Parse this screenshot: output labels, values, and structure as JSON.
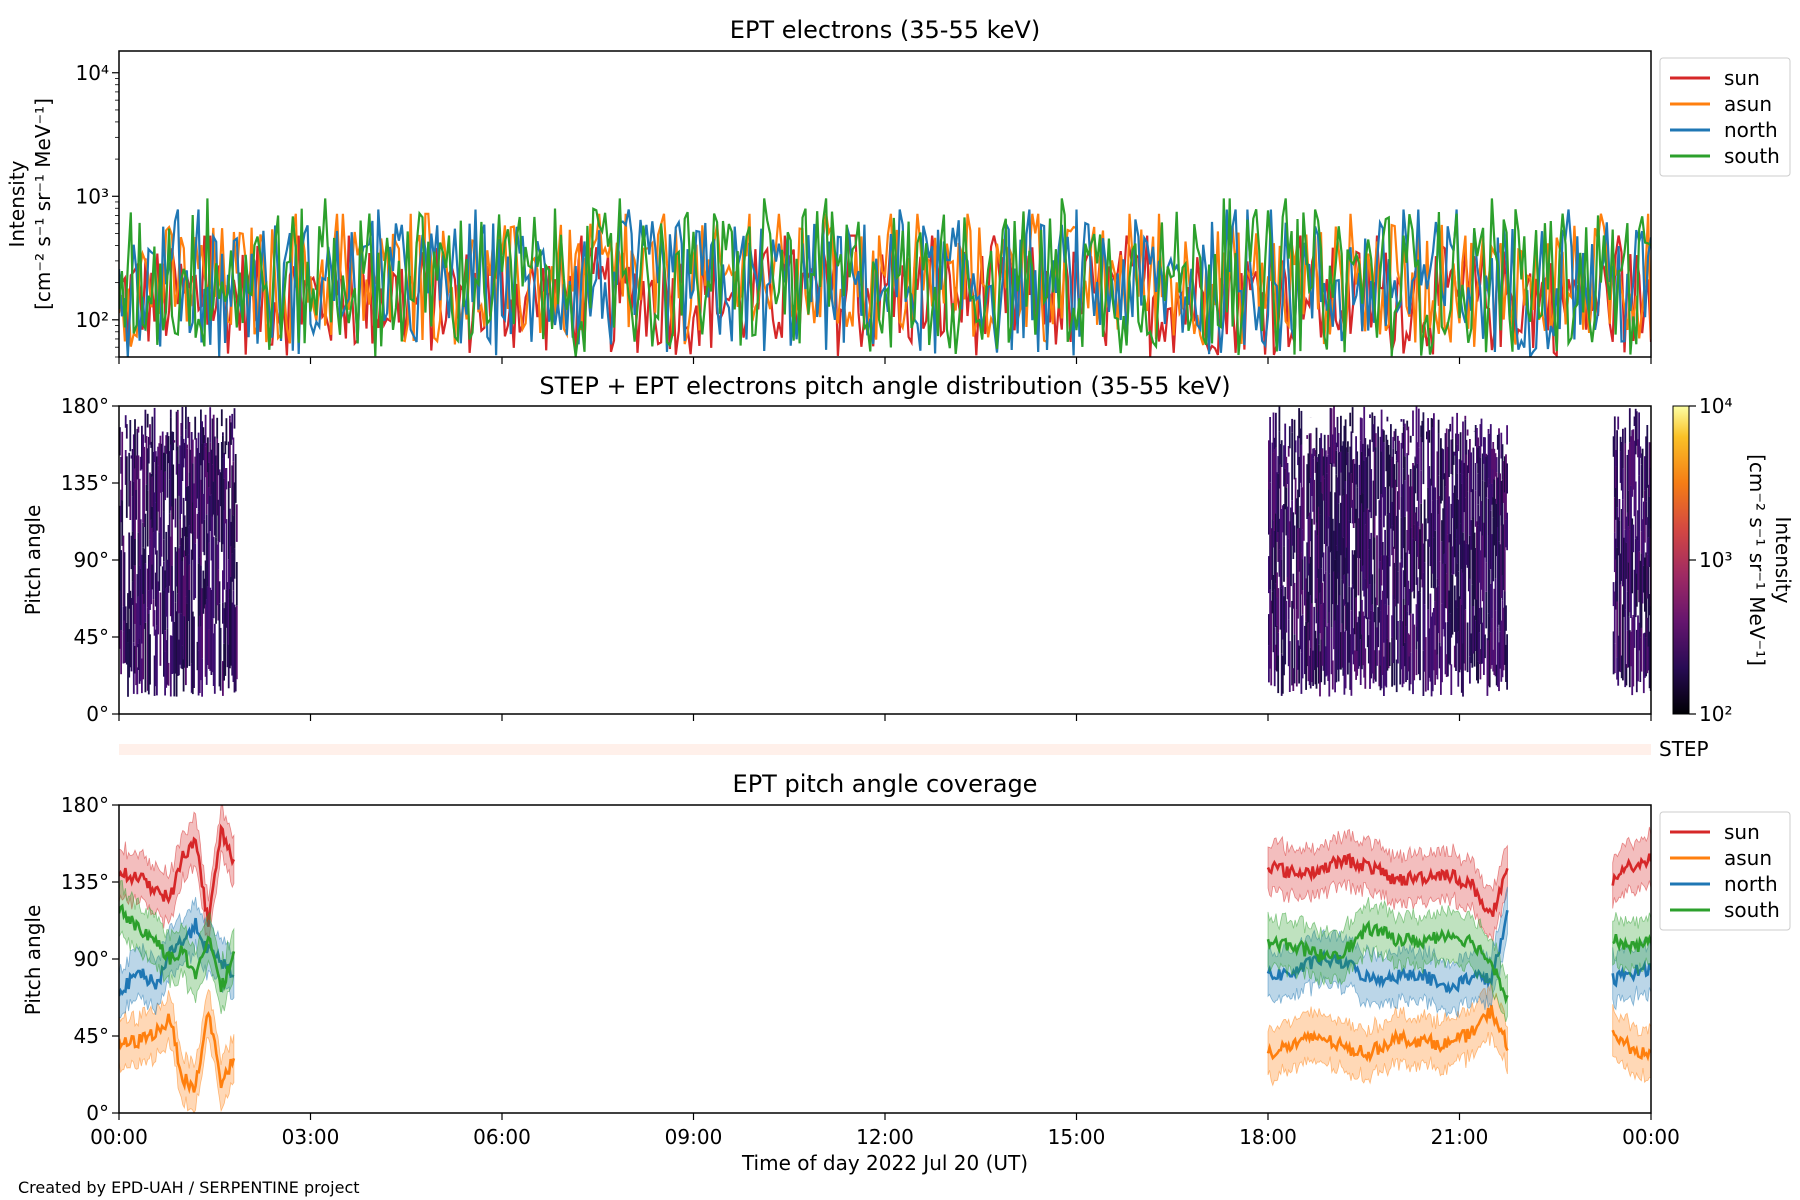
{
  "figure": {
    "footer": "Created by EPD-UAH / SERPENTINE project",
    "step_label": "STEP",
    "xlabel": "Time of day 2022 Jul 20 (UT)",
    "x_ticks": [
      "00:00",
      "03:00",
      "06:00",
      "09:00",
      "12:00",
      "15:00",
      "18:00",
      "21:00",
      "00:00"
    ]
  },
  "chart_data": [
    {
      "type": "line",
      "title": "EPT electrons (35-55 keV)",
      "ylabel": "Intensity",
      "ylabel_units": "[cm⁻² s⁻¹ sr⁻¹ MeV⁻¹]",
      "yscale": "log",
      "ylim": [
        50,
        15000
      ],
      "xlim_hours": [
        0,
        24
      ],
      "y_ticks": [
        "10²",
        "10³",
        "10⁴"
      ],
      "y_tick_values": [
        100,
        1000,
        10000
      ],
      "legend_position": "outside-right",
      "colors": {
        "sun": "#d62728",
        "asun": "#ff7f0e",
        "north": "#1f77b4",
        "south": "#2ca02c"
      },
      "series": [
        {
          "name": "sun",
          "typical_range": [
            50,
            400
          ],
          "median": 150
        },
        {
          "name": "asun",
          "typical_range": [
            60,
            600
          ],
          "median": 200
        },
        {
          "name": "north",
          "typical_range": [
            50,
            650
          ],
          "median": 180
        },
        {
          "name": "south",
          "typical_range": [
            50,
            800
          ],
          "median": 160
        }
      ]
    },
    {
      "type": "heatmap",
      "title": "STEP + EPT electrons pitch angle distribution (35-55 keV)",
      "ylabel": "Pitch angle",
      "y_ticks": [
        "0°",
        "45°",
        "90°",
        "135°",
        "180°"
      ],
      "ylim": [
        0,
        180
      ],
      "xlim_hours": [
        0,
        24
      ],
      "colorbar": {
        "label": "Intensity",
        "units": "[cm⁻² s⁻¹ sr⁻¹ MeV⁻¹]",
        "scale": "log",
        "range": [
          100,
          10000
        ],
        "ticks": [
          "10²",
          "10³",
          "10⁴"
        ],
        "colormap": "inferno"
      },
      "coverage_intervals_hours": [
        [
          0.0,
          1.85
        ],
        [
          18.0,
          21.75
        ],
        [
          23.4,
          24.0
        ]
      ],
      "typical_intensity": 200
    },
    {
      "type": "line",
      "title": "EPT pitch angle coverage",
      "ylabel": "Pitch angle",
      "y_ticks": [
        "0°",
        "45°",
        "90°",
        "135°",
        "180°"
      ],
      "ylim": [
        0,
        180
      ],
      "xlim_hours": [
        0,
        24
      ],
      "legend_position": "outside-right",
      "intervals_hours": [
        [
          0.0,
          1.85
        ],
        [
          18.0,
          21.75
        ],
        [
          23.4,
          24.0
        ]
      ],
      "series": [
        {
          "name": "sun",
          "color": "#d62728",
          "segments": [
            {
              "x": [
                0.0,
                0.3,
                0.6,
                0.8,
                1.0,
                1.2,
                1.4,
                1.6,
                1.8
              ],
              "y": [
                140,
                138,
                130,
                125,
                150,
                160,
                110,
                165,
                148
              ]
            },
            {
              "x": [
                18.0,
                18.4,
                18.8,
                19.2,
                19.6,
                20.0,
                20.4,
                20.8,
                21.2,
                21.5,
                21.75
              ],
              "y": [
                145,
                140,
                142,
                148,
                144,
                136,
                138,
                140,
                133,
                115,
                140
              ]
            },
            {
              "x": [
                23.4,
                23.7,
                24.0
              ],
              "y": [
                135,
                145,
                148
              ]
            }
          ]
        },
        {
          "name": "asun",
          "color": "#ff7f0e",
          "segments": [
            {
              "x": [
                0.0,
                0.3,
                0.6,
                0.8,
                1.0,
                1.2,
                1.4,
                1.6,
                1.8
              ],
              "y": [
                40,
                42,
                48,
                55,
                20,
                15,
                60,
                18,
                32
              ]
            },
            {
              "x": [
                18.0,
                18.4,
                18.8,
                19.2,
                19.6,
                20.0,
                20.4,
                20.8,
                21.2,
                21.5,
                21.75
              ],
              "y": [
                35,
                40,
                45,
                38,
                35,
                44,
                42,
                40,
                47,
                60,
                40
              ]
            },
            {
              "x": [
                23.4,
                23.7,
                24.0
              ],
              "y": [
                45,
                38,
                32
              ]
            }
          ]
        },
        {
          "name": "north",
          "color": "#1f77b4",
          "segments": [
            {
              "x": [
                0.0,
                0.3,
                0.6,
                0.8,
                1.0,
                1.2,
                1.4,
                1.6,
                1.8
              ],
              "y": [
                70,
                82,
                75,
                95,
                100,
                110,
                95,
                88,
                82
              ]
            },
            {
              "x": [
                18.0,
                18.4,
                18.8,
                19.2,
                19.6,
                20.0,
                20.4,
                20.8,
                21.2,
                21.5,
                21.75
              ],
              "y": [
                80,
                82,
                90,
                88,
                78,
                80,
                82,
                72,
                80,
                78,
                115
              ]
            },
            {
              "x": [
                23.4,
                23.7,
                24.0
              ],
              "y": [
                78,
                82,
                85
              ]
            }
          ]
        },
        {
          "name": "south",
          "color": "#2ca02c",
          "segments": [
            {
              "x": [
                0.0,
                0.3,
                0.6,
                0.8,
                1.0,
                1.2,
                1.4,
                1.6,
                1.8
              ],
              "y": [
                120,
                108,
                100,
                90,
                95,
                78,
                105,
                72,
                95
              ]
            },
            {
              "x": [
                18.0,
                18.4,
                18.8,
                19.2,
                19.6,
                20.0,
                20.4,
                20.8,
                21.2,
                21.5,
                21.75
              ],
              "y": [
                100,
                98,
                92,
                95,
                108,
                102,
                100,
                105,
                100,
                88,
                68
              ]
            },
            {
              "x": [
                23.4,
                23.7,
                24.0
              ],
              "y": [
                102,
                96,
                100
              ]
            }
          ]
        }
      ]
    }
  ]
}
